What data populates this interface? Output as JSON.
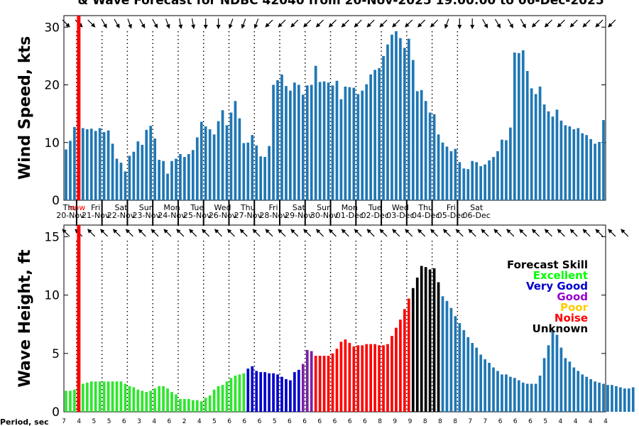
{
  "chart_data": {
    "title": "& Wave Forecast for NDBC 42040 from 20-Nov-2025 19:00:00 to 06-Dec-2025",
    "now_label": "now",
    "now_index": 3.5,
    "days": [
      {
        "day": "Thu",
        "date": "20-Nov"
      },
      {
        "day": "Fri",
        "date": "21-Nov"
      },
      {
        "day": "Sat",
        "date": "22-Nov"
      },
      {
        "day": "Sun",
        "date": "23-Nov"
      },
      {
        "day": "Mon",
        "date": "24-Nov"
      },
      {
        "day": "Tue",
        "date": "25-Nov"
      },
      {
        "day": "Wed",
        "date": "26-Nov"
      },
      {
        "day": "Thu",
        "date": "27-Nov"
      },
      {
        "day": "Fri",
        "date": "28-Nov"
      },
      {
        "day": "Sat",
        "date": "29-Nov"
      },
      {
        "day": "Sun",
        "date": "30-Nov"
      },
      {
        "day": "Mon",
        "date": "01-Dec"
      },
      {
        "day": "Tue",
        "date": "02-Dec"
      },
      {
        "day": "Wed",
        "date": "03-Dec"
      },
      {
        "day": "Thu",
        "date": "04-Dec"
      },
      {
        "day": "Fri",
        "date": "05-Dec"
      },
      {
        "day": "Sat",
        "date": "06-Dec"
      }
    ],
    "wind": {
      "type": "bar",
      "ylabel": "Wind Speed, kts",
      "ylim": [
        0,
        32
      ],
      "yticks": [
        0,
        10,
        20,
        30
      ],
      "values": [
        8.8,
        10.3,
        12.7,
        12.7,
        12.5,
        12.3,
        12.4,
        12.0,
        12.5,
        11.8,
        12.1,
        9.8,
        7.2,
        6.5,
        5.0,
        7.7,
        8.4,
        10.2,
        9.6,
        12.2,
        12.9,
        10.7,
        7.0,
        6.8,
        4.6,
        6.8,
        7.2,
        8.0,
        7.5,
        8.0,
        8.7,
        10.9,
        13.6,
        12.8,
        12.3,
        11.4,
        13.7,
        15.6,
        13.0,
        15.2,
        17.2,
        14.2,
        9.9,
        10.0,
        11.3,
        9.5,
        7.6,
        7.5,
        9.4,
        20.0,
        20.8,
        21.8,
        19.8,
        19.0,
        20.4,
        20.0,
        18.3,
        19.9,
        20.0,
        23.3,
        20.5,
        20.6,
        20.4,
        19.9,
        20.7,
        17.5,
        19.7,
        19.6,
        19.5,
        18.4,
        19.0,
        20.1,
        21.8,
        22.6,
        22.9,
        25.0,
        27.0,
        28.7,
        29.3,
        28.1,
        26.4,
        28.0,
        24.3,
        18.9,
        19.1,
        17.2,
        15.2,
        14.9,
        11.4,
        10.0,
        9.3,
        8.5,
        8.9,
        6.6,
        5.5,
        5.4,
        6.8,
        6.6,
        5.9,
        6.2,
        6.9,
        7.5,
        8.5,
        10.5,
        10.4,
        12.6,
        25.6,
        25.5,
        26.0,
        22.4,
        19.4,
        18.4,
        19.7,
        16.6,
        15.4,
        14.5,
        15.7,
        13.8,
        13.0,
        12.8,
        12.3,
        12.5,
        11.6,
        11.3,
        10.6,
        9.8,
        10.1,
        13.9
      ],
      "directions": [
        135,
        135,
        135,
        135,
        135,
        135,
        135,
        150,
        150,
        150,
        150,
        150,
        150,
        150,
        160,
        160,
        160,
        150,
        150,
        150,
        150,
        150,
        150,
        160,
        160,
        170,
        170,
        170,
        170,
        170,
        170,
        170,
        180,
        180,
        180,
        180,
        180,
        180,
        180,
        200,
        200,
        200,
        200,
        200,
        200,
        200,
        200,
        200,
        225,
        225,
        225,
        225,
        225,
        225,
        225,
        225,
        225,
        225,
        225,
        225,
        225,
        225,
        225,
        225,
        225,
        225,
        225,
        225,
        225,
        225,
        225,
        225,
        225,
        225,
        225,
        225,
        225,
        225,
        225,
        225,
        225,
        225,
        225,
        225,
        225,
        225,
        225,
        225,
        225,
        200,
        200,
        200,
        200,
        180,
        180,
        180,
        180,
        150,
        150,
        150,
        150,
        150,
        150,
        150,
        150,
        150,
        150,
        150,
        150,
        150,
        150,
        225,
        225,
        225,
        225,
        225,
        225,
        225,
        225,
        225,
        225,
        225,
        225,
        225,
        225,
        225,
        225,
        225,
        225,
        225
      ]
    },
    "wave": {
      "type": "bar",
      "ylabel": "Wave Height, ft",
      "ylim": [
        0,
        16
      ],
      "yticks": [
        0,
        5,
        10,
        15
      ],
      "values": [
        1.8,
        1.8,
        1.9,
        2.1,
        2.4,
        2.5,
        2.6,
        2.6,
        2.6,
        2.6,
        2.6,
        2.6,
        2.6,
        2.6,
        2.4,
        2.2,
        2.1,
        1.9,
        1.8,
        1.7,
        1.8,
        2.0,
        2.2,
        2.2,
        2.0,
        1.7,
        1.5,
        1.1,
        1.1,
        1.1,
        1.0,
        1.0,
        0.9,
        1.2,
        1.4,
        1.9,
        2.2,
        2.3,
        2.6,
        2.9,
        3.1,
        3.2,
        3.3,
        3.7,
        3.9,
        3.5,
        3.4,
        3.4,
        3.3,
        3.3,
        3.2,
        3.0,
        2.8,
        2.7,
        3.4,
        3.6,
        4.1,
        5.3,
        5.2,
        4.8,
        4.8,
        4.8,
        4.8,
        5.0,
        5.4,
        6.0,
        6.2,
        5.9,
        5.6,
        5.7,
        5.7,
        5.8,
        5.8,
        5.8,
        5.7,
        5.7,
        5.8,
        6.5,
        7.2,
        7.9,
        8.8,
        9.7,
        10.6,
        11.5,
        12.5,
        12.4,
        12.2,
        12.3,
        11.1,
        9.9,
        9.5,
        8.9,
        8.2,
        7.6,
        7.0,
        6.4,
        5.9,
        5.5,
        4.9,
        4.5,
        4.2,
        3.8,
        3.5,
        3.2,
        3.2,
        3.0,
        2.9,
        2.7,
        2.5,
        2.4,
        2.4,
        2.4,
        3.1,
        4.6,
        5.7,
        7.0,
        6.6,
        5.5,
        4.6,
        4.3,
        3.8,
        3.5,
        3.2,
        3.0,
        2.8,
        2.6,
        2.5,
        2.4,
        2.3,
        2.3,
        2.2,
        2.1,
        2.0,
        2.0,
        2.1
      ],
      "skill": [
        "excellent",
        "excellent",
        "excellent",
        "excellent",
        "excellent",
        "excellent",
        "excellent",
        "excellent",
        "excellent",
        "excellent",
        "excellent",
        "excellent",
        "excellent",
        "excellent",
        "excellent",
        "excellent",
        "excellent",
        "excellent",
        "excellent",
        "excellent",
        "excellent",
        "excellent",
        "excellent",
        "excellent",
        "excellent",
        "excellent",
        "excellent",
        "excellent",
        "excellent",
        "excellent",
        "excellent",
        "excellent",
        "excellent",
        "excellent",
        "excellent",
        "excellent",
        "excellent",
        "excellent",
        "excellent",
        "excellent",
        "excellent",
        "excellent",
        "excellent",
        "very_good",
        "very_good",
        "very_good",
        "very_good",
        "very_good",
        "very_good",
        "very_good",
        "very_good",
        "very_good",
        "very_good",
        "very_good",
        "very_good",
        "very_good",
        "good",
        "good",
        "good",
        "noise",
        "noise",
        "noise",
        "noise",
        "noise",
        "noise",
        "noise",
        "noise",
        "noise",
        "noise",
        "noise",
        "noise",
        "noise",
        "noise",
        "noise",
        "noise",
        "noise",
        "noise",
        "noise",
        "noise",
        "noise",
        "noise",
        "noise",
        "unknown",
        "unknown",
        "unknown",
        "unknown",
        "unknown",
        "unknown",
        "unknown",
        "none",
        "none",
        "none",
        "none",
        "none",
        "none",
        "none",
        "none",
        "none",
        "none",
        "none",
        "none",
        "none",
        "none",
        "none",
        "none",
        "none",
        "none",
        "none",
        "none",
        "none",
        "none",
        "none",
        "none",
        "none",
        "none",
        "none",
        "none",
        "none",
        "none",
        "none",
        "none",
        "none",
        "none",
        "none",
        "none",
        "none",
        "none",
        "none",
        "none",
        "none",
        "none",
        "none",
        "none",
        "none"
      ],
      "directions": [
        315,
        315,
        315,
        315,
        315,
        315,
        315,
        315,
        315,
        315,
        315,
        315,
        315,
        315,
        315,
        315,
        315,
        315,
        315,
        315,
        315,
        315,
        315,
        315,
        315,
        315,
        315,
        315,
        315,
        315,
        315,
        315,
        315,
        315,
        315,
        315,
        315,
        315,
        315,
        315,
        315,
        315,
        315,
        315,
        315,
        315,
        315,
        315,
        315,
        315,
        315,
        315,
        315,
        315,
        315,
        315,
        315,
        315,
        315,
        315,
        315,
        315,
        315,
        315,
        315,
        315,
        315,
        315,
        315,
        315,
        315,
        315,
        315,
        315,
        315,
        315,
        315,
        315,
        315,
        315,
        315,
        315,
        315,
        315,
        315,
        315,
        315,
        315,
        315,
        315,
        315,
        315,
        315,
        315,
        315,
        315,
        315,
        315,
        315,
        315,
        315,
        315,
        315,
        315,
        315,
        315,
        315,
        315,
        315,
        315,
        315,
        315,
        315,
        315,
        315,
        315,
        315,
        315,
        315,
        315,
        315,
        315,
        315,
        315,
        315,
        315,
        315,
        315,
        315,
        315,
        315,
        315,
        315
      ]
    },
    "period_label": "Period, sec",
    "periods": [
      7,
      4,
      5,
      5,
      6,
      3,
      4,
      6,
      2,
      4,
      5,
      6,
      6,
      6,
      5,
      6,
      6,
      6,
      6,
      6,
      6,
      8,
      9,
      9,
      8,
      8,
      8,
      7,
      7,
      6,
      6,
      6,
      5,
      4,
      4,
      4,
      4
    ],
    "legend": {
      "title": "Forecast Skill",
      "items": [
        {
          "label": "Excellent",
          "color": "#00ff00"
        },
        {
          "label": "Very Good",
          "color": "#0000cc"
        },
        {
          "label": "Good",
          "color": "#9900cc"
        },
        {
          "label": "Poor",
          "color": "#ffcc00"
        },
        {
          "label": "Noise",
          "color": "#ff0000"
        },
        {
          "label": "Unknown",
          "color": "#000000"
        }
      ]
    },
    "colors": {
      "wind_bar": "#1f77b4",
      "wave_default": "#1f77b4",
      "excellent": "#2ee62e",
      "very_good": "#0000cc",
      "good": "#7b1fa2",
      "noise": "#ff0000",
      "unknown": "#000000",
      "now_line": "#ff0000"
    }
  }
}
